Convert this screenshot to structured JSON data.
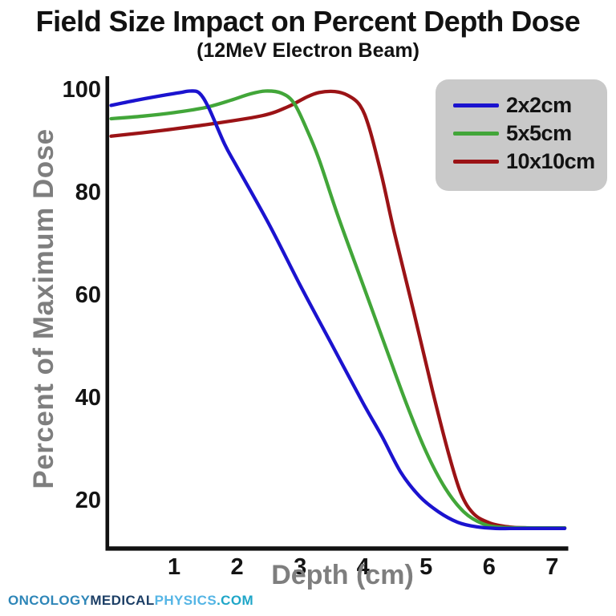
{
  "header": {
    "title": "Field Size Impact on Percent Depth Dose",
    "subtitle": "(12MeV Electron Beam)"
  },
  "watermark": {
    "parts": [
      {
        "text": "ONCOLOGY",
        "color": "#2e86b8"
      },
      {
        "text": "MEDICAL",
        "color": "#1d3f66"
      },
      {
        "text": "PHYSICS",
        "color": "#55b5e5"
      },
      {
        "text": ".COM",
        "color": "#1fa6c8"
      }
    ]
  },
  "chart_data": {
    "type": "line",
    "title": "Field Size Impact on Percent Depth Dose",
    "subtitle": "(12MeV Electron Beam)",
    "xlabel": "Depth (cm)",
    "ylabel": "Percent of Maximum Dose",
    "xlim": [
      0,
      7.25
    ],
    "ylim": [
      11,
      102.7
    ],
    "xticks": [
      1,
      2,
      3,
      4,
      5,
      6,
      7
    ],
    "yticks": [
      20,
      40,
      60,
      80,
      100
    ],
    "grid": false,
    "legend_position": "top-right",
    "axis_color": "#111111",
    "tick_label_color": "#141414",
    "axis_label_color": "#7e7e7e",
    "legend_bg": "#c9c9c9",
    "series": [
      {
        "name": "2x2cm",
        "color": "#1b13cf",
        "points": [
          [
            0,
            97
          ],
          [
            0.4,
            98
          ],
          [
            0.8,
            98.9
          ],
          [
            1.1,
            99.5
          ],
          [
            1.25,
            99.8
          ],
          [
            1.4,
            99.4
          ],
          [
            1.55,
            96.5
          ],
          [
            1.8,
            89.5
          ],
          [
            2.0,
            85
          ],
          [
            2.5,
            74
          ],
          [
            3.0,
            62
          ],
          [
            3.5,
            50.5
          ],
          [
            4.0,
            39
          ],
          [
            4.3,
            32.5
          ],
          [
            4.6,
            25.5
          ],
          [
            4.9,
            20.8
          ],
          [
            5.2,
            17.8
          ],
          [
            5.5,
            15.8
          ],
          [
            5.8,
            14.9
          ],
          [
            6.1,
            14.6
          ],
          [
            6.6,
            14.6
          ],
          [
            7.2,
            14.6
          ]
        ]
      },
      {
        "name": "5x5cm",
        "color": "#42a639",
        "points": [
          [
            0,
            94.4
          ],
          [
            0.5,
            94.9
          ],
          [
            1.0,
            95.6
          ],
          [
            1.5,
            96.6
          ],
          [
            1.9,
            98
          ],
          [
            2.2,
            99.2
          ],
          [
            2.45,
            99.8
          ],
          [
            2.7,
            99.4
          ],
          [
            2.9,
            97.5
          ],
          [
            3.1,
            92.5
          ],
          [
            3.3,
            86.5
          ],
          [
            3.6,
            75.5
          ],
          [
            4.0,
            62
          ],
          [
            4.4,
            48.5
          ],
          [
            4.7,
            38.5
          ],
          [
            5.0,
            29.5
          ],
          [
            5.3,
            22.5
          ],
          [
            5.6,
            17.8
          ],
          [
            5.9,
            15.5
          ],
          [
            6.2,
            14.8
          ],
          [
            6.7,
            14.7
          ],
          [
            7.2,
            14.7
          ]
        ]
      },
      {
        "name": "10x10cm",
        "color": "#9b1316",
        "points": [
          [
            0,
            91
          ],
          [
            0.8,
            92.1
          ],
          [
            1.6,
            93.4
          ],
          [
            2.4,
            95
          ],
          [
            2.8,
            96.7
          ],
          [
            3.1,
            98.6
          ],
          [
            3.3,
            99.5
          ],
          [
            3.55,
            99.7
          ],
          [
            3.75,
            99.0
          ],
          [
            3.95,
            97
          ],
          [
            4.1,
            92.5
          ],
          [
            4.3,
            83
          ],
          [
            4.5,
            72
          ],
          [
            4.8,
            57
          ],
          [
            5.1,
            41.5
          ],
          [
            5.35,
            29.5
          ],
          [
            5.55,
            21.5
          ],
          [
            5.75,
            17.5
          ],
          [
            6.0,
            15.7
          ],
          [
            6.3,
            14.9
          ],
          [
            6.6,
            14.7
          ],
          [
            7.2,
            14.7
          ]
        ]
      }
    ]
  }
}
